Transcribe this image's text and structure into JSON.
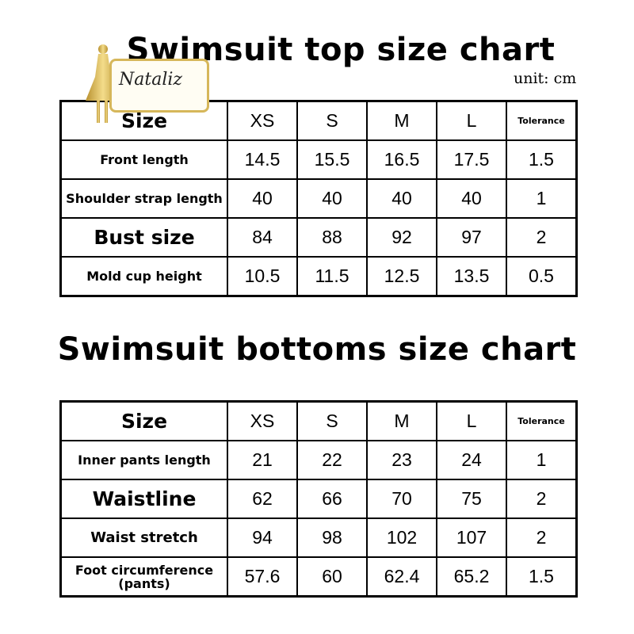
{
  "top": {
    "title": "Swimsuit top size chart",
    "unit": "unit: cm",
    "headers": [
      "Size",
      "XS",
      "S",
      "M",
      "L",
      "Tolerance"
    ],
    "rows": [
      {
        "label": "Front length",
        "values": [
          "14.5",
          "15.5",
          "16.5",
          "17.5",
          "1.5"
        ]
      },
      {
        "label": "Shoulder strap length",
        "values": [
          "40",
          "40",
          "40",
          "40",
          "1"
        ]
      },
      {
        "label": "Bust size",
        "values": [
          "84",
          "88",
          "92",
          "97",
          "2"
        ]
      },
      {
        "label": "Mold cup height",
        "values": [
          "10.5",
          "11.5",
          "12.5",
          "13.5",
          "0.5"
        ]
      }
    ]
  },
  "bottom": {
    "title": "Swimsuit bottoms size chart",
    "headers": [
      "Size",
      "XS",
      "S",
      "M",
      "L",
      "Tolerance"
    ],
    "rows": [
      {
        "label": "Inner pants length",
        "values": [
          "21",
          "22",
          "23",
          "24",
          "1"
        ]
      },
      {
        "label": "Waistline",
        "values": [
          "62",
          "66",
          "70",
          "75",
          "2"
        ]
      },
      {
        "label": "Waist stretch",
        "values": [
          "94",
          "98",
          "102",
          "107",
          "2"
        ]
      },
      {
        "label": "Foot circumference (pants)",
        "values": [
          "57.6",
          "60",
          "62.4",
          "65.2",
          "1.5"
        ]
      }
    ]
  },
  "logo": {
    "text": "Nataliz",
    "color": "#d6b75a"
  }
}
